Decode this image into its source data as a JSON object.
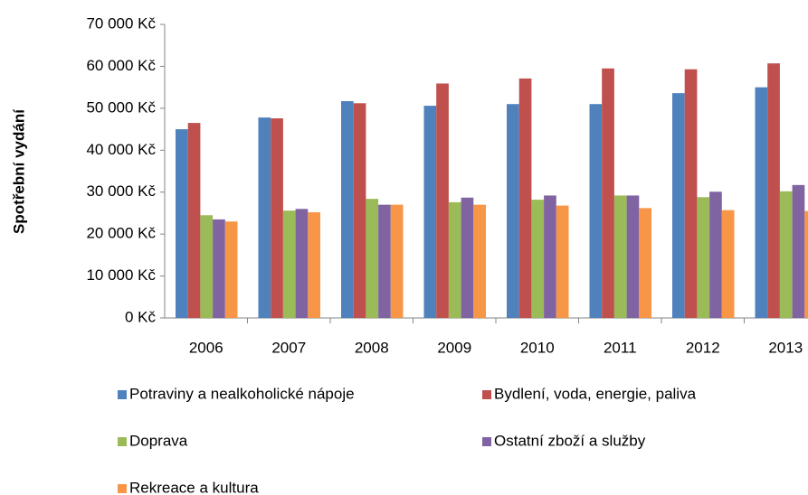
{
  "chart_data": {
    "type": "bar",
    "y_axis_label": "Spotřební vydání",
    "categories": [
      "2006",
      "2007",
      "2008",
      "2009",
      "2010",
      "2011",
      "2012",
      "2013"
    ],
    "series": [
      {
        "name": "Potraviny a nealkoholické nápoje",
        "color": "#4f81bd",
        "values": [
          45000,
          47800,
          51700,
          50600,
          51000,
          51000,
          53600,
          55000
        ]
      },
      {
        "name": "Bydlení, voda, energie, paliva",
        "color": "#c0504d",
        "values": [
          46500,
          47600,
          51200,
          55900,
          57100,
          59500,
          59300,
          60700
        ]
      },
      {
        "name": "Doprava",
        "color": "#9bbb59",
        "values": [
          24500,
          25600,
          28400,
          27600,
          28200,
          29200,
          28800,
          30200
        ]
      },
      {
        "name": "Ostatní zboží a služby",
        "color": "#8064a2",
        "values": [
          23500,
          26000,
          27000,
          28700,
          29200,
          29200,
          30100,
          31700
        ]
      },
      {
        "name": "Rekreace a kultura",
        "color": "#f79646",
        "values": [
          23000,
          25200,
          27000,
          27000,
          26800,
          26200,
          25700,
          25500
        ]
      }
    ],
    "ylim": [
      0,
      70000
    ],
    "yticks": [
      {
        "value": 0,
        "label": "0 Kč"
      },
      {
        "value": 10000,
        "label": "10 000 Kč"
      },
      {
        "value": 20000,
        "label": "20 000 Kč"
      },
      {
        "value": 30000,
        "label": "30 000 Kč"
      },
      {
        "value": 40000,
        "label": "40 000 Kč"
      },
      {
        "value": 50000,
        "label": "50 000 Kč"
      },
      {
        "value": 60000,
        "label": "60 000 Kč"
      },
      {
        "value": 70000,
        "label": "70 000 Kč"
      }
    ],
    "grid": false
  }
}
